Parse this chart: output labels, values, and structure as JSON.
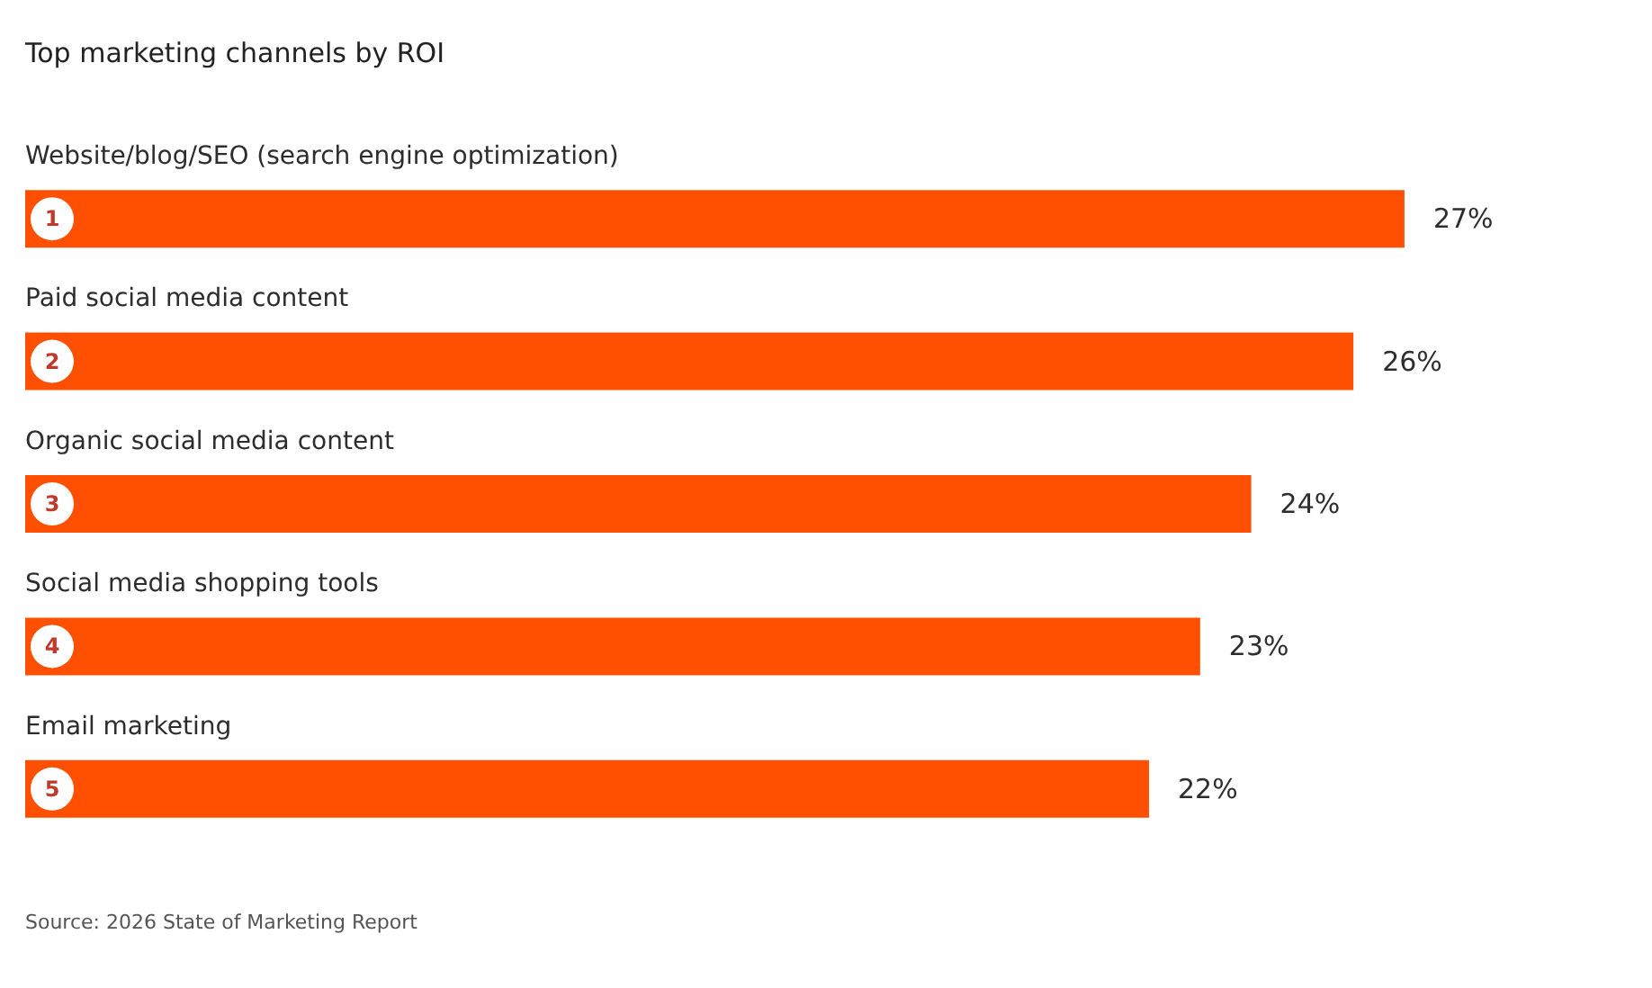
{
  "chart_data": {
    "type": "bar",
    "orientation": "horizontal",
    "title": "Top marketing channels by ROI",
    "categories": [
      "Website/blog/SEO (search engine optimization)",
      "Paid social media content",
      "Organic social media content",
      "Social media shopping tools",
      "Email marketing"
    ],
    "values": [
      27,
      26,
      24,
      23,
      22
    ],
    "value_labels": [
      "27%",
      "26%",
      "24%",
      "23%",
      "22%"
    ],
    "color": "#ff4f00",
    "annotations": [
      "1",
      "2",
      "3",
      "4",
      "5",
      "Source: 2026 State of Marketing Report"
    ]
  }
}
